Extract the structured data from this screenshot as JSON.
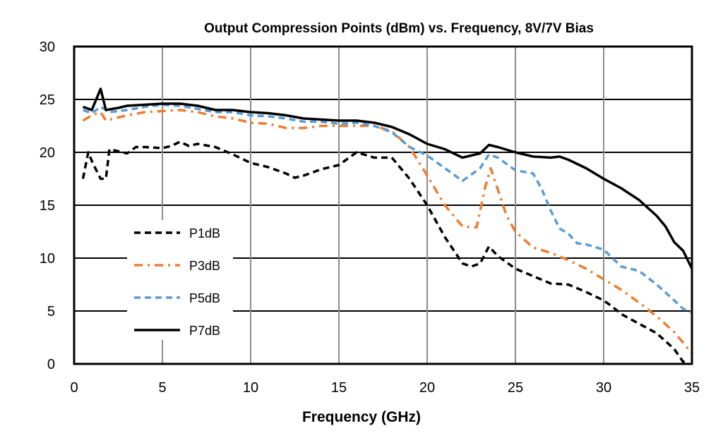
{
  "chart_data": {
    "type": "line",
    "title": "Output Compression Points (dBm) vs. Frequency, 8V/7V Bias",
    "xlabel": "Frequency (GHz)",
    "ylabel": "",
    "xlim": [
      0,
      35
    ],
    "ylim": [
      0,
      30
    ],
    "xticks": [
      0,
      5,
      10,
      15,
      20,
      25,
      30,
      35
    ],
    "yticks": [
      0,
      5,
      10,
      15,
      20,
      25,
      30
    ],
    "grid": true,
    "legend_position": "left-lower",
    "series": [
      {
        "name": "P1dB",
        "color": "#000000",
        "style": "dashed",
        "x": [
          0.5,
          0.8,
          1,
          1.2,
          1.5,
          1.8,
          2,
          2.5,
          3,
          3.5,
          4,
          5,
          5.5,
          6,
          6.5,
          7,
          8,
          9,
          10,
          11,
          12,
          12.5,
          13,
          14,
          15,
          16,
          17,
          18,
          19,
          20,
          21,
          22,
          22.5,
          23,
          23.5,
          24,
          25,
          26,
          27,
          28,
          29,
          30,
          30.5,
          31,
          32,
          33,
          34,
          34.5,
          34.8
        ],
        "y": [
          17.5,
          20.0,
          19.2,
          18.5,
          17.5,
          17.5,
          20.3,
          20.1,
          19.9,
          20.5,
          20.5,
          20.4,
          20.6,
          21.0,
          20.6,
          20.8,
          20.5,
          19.8,
          19.0,
          18.6,
          18.0,
          17.6,
          17.8,
          18.4,
          18.8,
          20.0,
          19.5,
          19.5,
          17.5,
          15.0,
          12.0,
          9.5,
          9.2,
          9.5,
          11.1,
          10.2,
          9.0,
          8.3,
          7.6,
          7.5,
          6.8,
          6.0,
          5.4,
          4.7,
          3.8,
          2.9,
          1.4,
          0.2,
          0.2
        ]
      },
      {
        "name": "P3dB",
        "color": "#ED7D31",
        "style": "dashdot",
        "x": [
          0.5,
          1,
          1.5,
          1.8,
          2.5,
          3,
          4,
          5,
          6,
          7,
          8,
          9,
          10,
          11,
          12,
          13,
          14,
          15,
          16,
          17,
          18,
          19,
          20,
          21,
          22,
          22.8,
          23.3,
          23.6,
          24,
          24.5,
          25,
          26,
          27,
          28,
          29,
          30,
          31,
          32,
          33,
          34,
          35
        ],
        "y": [
          23.0,
          23.5,
          23.8,
          23.0,
          23.3,
          23.5,
          23.8,
          23.9,
          24.0,
          23.8,
          23.4,
          23.2,
          22.8,
          22.7,
          22.3,
          22.3,
          22.5,
          22.5,
          22.5,
          22.5,
          22.0,
          20.5,
          17.8,
          15.0,
          13.0,
          12.9,
          16.8,
          18.5,
          16.5,
          14.0,
          12.5,
          11.0,
          10.5,
          9.8,
          9.0,
          8.0,
          7.0,
          5.8,
          4.5,
          3.0,
          1.0
        ]
      },
      {
        "name": "P5dB",
        "color": "#5B9BD5",
        "style": "dashed",
        "x": [
          0.5,
          1,
          1.5,
          2,
          3,
          4,
          5,
          6,
          7,
          8,
          9,
          10,
          11,
          12,
          13,
          14,
          15,
          16,
          17,
          18,
          19,
          20,
          21,
          22,
          23,
          23.5,
          24,
          25,
          26,
          26.5,
          27,
          27.5,
          28,
          28.5,
          29,
          30,
          31,
          32,
          33,
          34,
          34.5,
          35
        ],
        "y": [
          24.0,
          23.7,
          24.3,
          23.8,
          24.0,
          24.3,
          24.5,
          24.4,
          24.1,
          23.8,
          23.8,
          23.5,
          23.4,
          23.2,
          22.9,
          22.9,
          22.7,
          22.8,
          22.5,
          21.9,
          20.5,
          19.7,
          18.5,
          17.3,
          18.5,
          19.8,
          19.5,
          18.3,
          18.0,
          16.5,
          14.5,
          12.8,
          12.3,
          11.4,
          11.3,
          10.8,
          9.2,
          8.8,
          7.5,
          6.0,
          5.2,
          4.9
        ]
      },
      {
        "name": "P7dB",
        "color": "#000000",
        "style": "solid",
        "x": [
          0.5,
          1,
          1.5,
          1.8,
          2.5,
          3,
          4,
          5,
          6,
          7,
          8,
          9,
          10,
          11,
          12,
          13,
          14,
          15,
          16,
          17,
          18,
          19,
          20,
          21,
          22,
          23,
          23.5,
          24,
          25,
          26,
          27,
          27.5,
          28,
          29,
          30,
          31,
          32,
          33,
          33.5,
          34,
          34.5,
          35
        ],
        "y": [
          24.3,
          24.0,
          26.0,
          24.0,
          24.2,
          24.4,
          24.5,
          24.6,
          24.6,
          24.4,
          24.0,
          24.0,
          23.8,
          23.7,
          23.5,
          23.2,
          23.1,
          23.0,
          23.0,
          22.8,
          22.4,
          21.7,
          20.8,
          20.3,
          19.5,
          19.9,
          20.7,
          20.5,
          20.0,
          19.6,
          19.5,
          19.6,
          19.3,
          18.5,
          17.5,
          16.6,
          15.5,
          14.0,
          13.0,
          11.5,
          10.7,
          9.0
        ]
      }
    ]
  }
}
